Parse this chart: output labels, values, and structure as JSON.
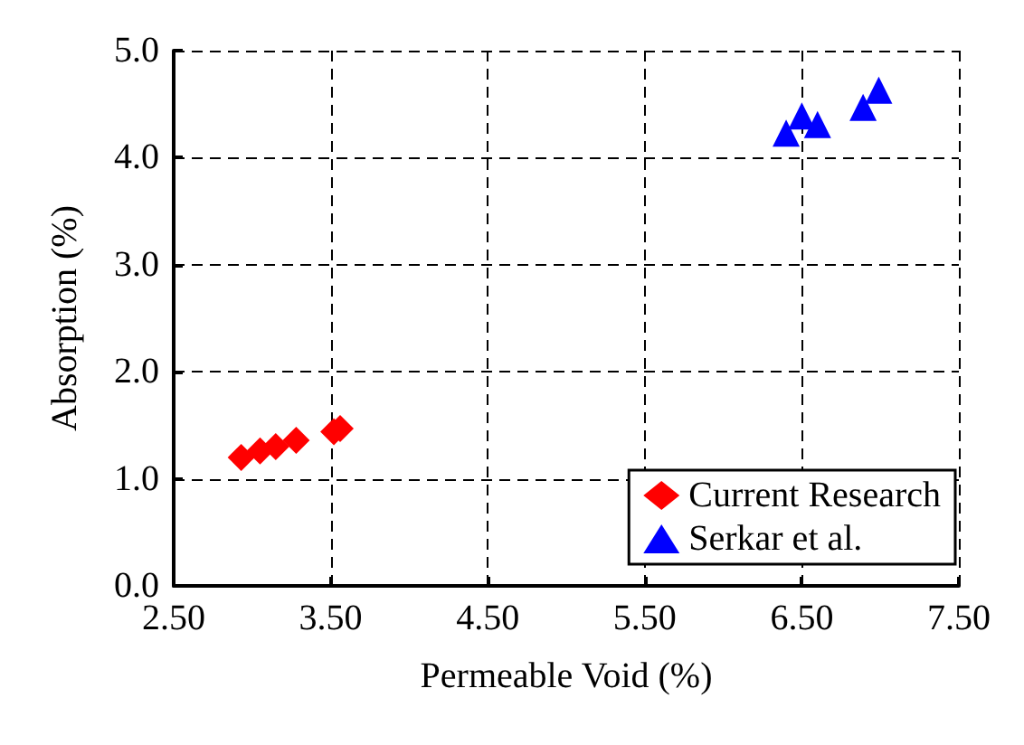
{
  "chart_data": {
    "type": "scatter",
    "xlabel": "Permeable Void (%)",
    "ylabel": "Absorption (%)",
    "xlim": [
      2.5,
      7.5
    ],
    "xticks": [
      {
        "value": 2.5,
        "label": "2.50"
      },
      {
        "value": 3.5,
        "label": "3.50"
      },
      {
        "value": 4.5,
        "label": "4.50"
      },
      {
        "value": 5.5,
        "label": "5.50"
      },
      {
        "value": 6.5,
        "label": "6.50"
      },
      {
        "value": 7.5,
        "label": "7.50"
      }
    ],
    "ylim": [
      0,
      5
    ],
    "yticks": [
      {
        "value": 0,
        "label": "0.0"
      },
      {
        "value": 1,
        "label": "1.0"
      },
      {
        "value": 2,
        "label": "2.0"
      },
      {
        "value": 3,
        "label": "3.0"
      },
      {
        "value": 4,
        "label": "4.0"
      },
      {
        "value": 5,
        "label": "5.0"
      }
    ],
    "grid": true,
    "legend": "bottom right",
    "series": [
      {
        "name": "Current Research",
        "color": "#ff0000",
        "marker": "diamond",
        "x": [
          2.93,
          3.05,
          3.15,
          3.28,
          3.52,
          3.56
        ],
        "values": [
          1.2,
          1.26,
          1.3,
          1.36,
          1.44,
          1.47
        ]
      },
      {
        "name": "Serkar et al.",
        "color": "#0000ff",
        "marker": "triangle",
        "x": [
          6.4,
          6.5,
          6.6,
          6.89,
          6.99
        ],
        "values": [
          4.23,
          4.39,
          4.31,
          4.47,
          4.63
        ]
      }
    ]
  }
}
